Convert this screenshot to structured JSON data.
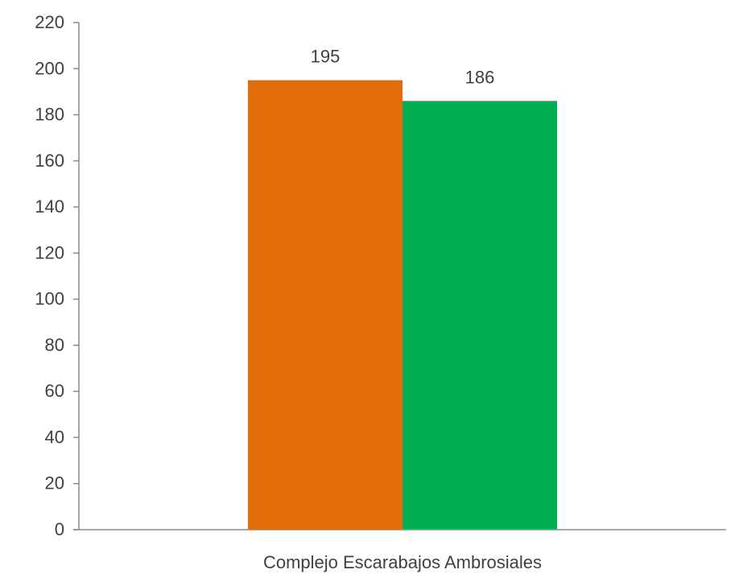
{
  "chart_data": {
    "type": "bar",
    "categories": [
      "Complejo Escarabajos Ambrosiales"
    ],
    "series": [
      {
        "values": [
          195
        ],
        "color": "#E46C0A"
      },
      {
        "values": [
          186
        ],
        "color": "#00B050"
      }
    ],
    "data_labels": [
      "195",
      "186"
    ],
    "title": "",
    "xlabel": "",
    "ylabel": "",
    "ylim": [
      0,
      220
    ],
    "yticks": [
      0,
      20,
      40,
      60,
      80,
      100,
      120,
      140,
      160,
      180,
      200,
      220
    ],
    "grid": false,
    "legend": "none",
    "axis_color": "#8C8C8C",
    "text_color": "#404040"
  }
}
